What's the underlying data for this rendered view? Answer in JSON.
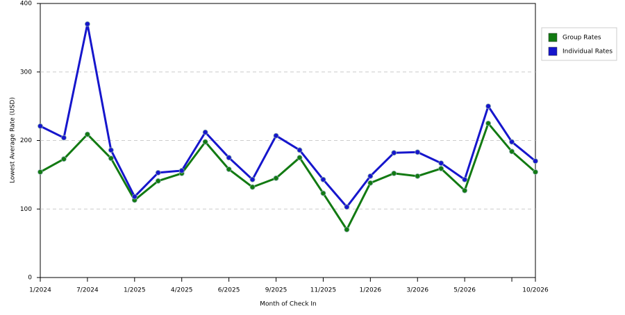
{
  "chart_data": {
    "type": "line",
    "x_label": "Month of Check In",
    "y_label": "Lowest Average Rate (USD)",
    "categories": [
      "1/2024",
      null,
      "7/2024",
      null,
      "1/2025",
      null,
      "4/2025",
      null,
      "6/2025",
      null,
      "9/2025",
      null,
      "11/2025",
      null,
      "1/2026",
      null,
      "3/2026",
      null,
      "5/2026",
      null,
      null,
      "10/2026"
    ],
    "series": [
      {
        "name": "Group Rates",
        "color": "#127a12",
        "values": [
          154,
          173,
          209,
          174,
          113,
          141,
          152,
          198,
          158,
          132,
          145,
          175,
          123,
          70,
          138,
          152,
          148,
          159,
          127,
          225,
          184,
          154
        ]
      },
      {
        "name": "Individual Rates",
        "color": "#1616cc",
        "values": [
          221,
          204,
          370,
          186,
          118,
          153,
          156,
          212,
          175,
          143,
          207,
          186,
          143,
          103,
          148,
          182,
          183,
          167,
          143,
          250,
          198,
          170
        ]
      }
    ],
    "ylim": [
      0,
      400
    ],
    "yticks": [
      0,
      100,
      200,
      300,
      400
    ],
    "grid": true,
    "legend": "right"
  }
}
